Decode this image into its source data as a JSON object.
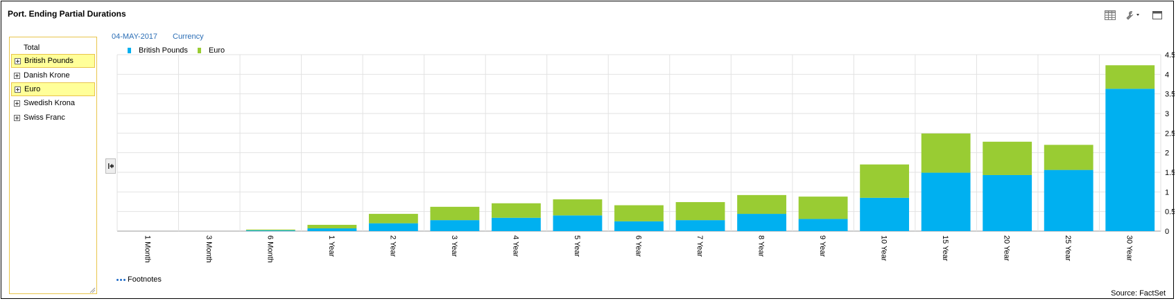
{
  "window": {
    "title": "Port. Ending Partial Durations"
  },
  "toolbar": {
    "icons": [
      "grid-icon",
      "wrench-icon",
      "chevron-down-icon",
      "maximize-icon"
    ]
  },
  "header": {
    "date": "04-MAY-2017",
    "grouping": "Currency"
  },
  "sidebar": {
    "items": [
      {
        "label": "Total",
        "expandable": false,
        "highlighted": false
      },
      {
        "label": "British Pounds",
        "expandable": true,
        "highlighted": true
      },
      {
        "label": "Danish Krone",
        "expandable": true,
        "highlighted": false
      },
      {
        "label": "Euro",
        "expandable": true,
        "highlighted": true
      },
      {
        "label": "Swedish Krona",
        "expandable": true,
        "highlighted": false
      },
      {
        "label": "Swiss Franc",
        "expandable": true,
        "highlighted": false
      }
    ]
  },
  "footer": {
    "footnotes_label": "Footnotes",
    "source": "Source: FactSet"
  },
  "chart_data": {
    "type": "bar",
    "stacked": true,
    "categories": [
      "1 Month",
      "3 Month",
      "6 Month",
      "1 Year",
      "2 Year",
      "3 Year",
      "4 Year",
      "5 Year",
      "6 Year",
      "7 Year",
      "8 Year",
      "9 Year",
      "10 Year",
      "15 Year",
      "20 Year",
      "25 Year",
      "30 Year"
    ],
    "series": [
      {
        "name": "British Pounds",
        "color": "#00b0f0",
        "values": [
          0,
          0,
          0.02,
          0.07,
          0.2,
          0.28,
          0.34,
          0.4,
          0.25,
          0.28,
          0.44,
          0.31,
          0.85,
          1.49,
          1.43,
          1.56,
          3.63
        ]
      },
      {
        "name": "Euro",
        "color": "#99cc33",
        "values": [
          0,
          0,
          0.02,
          0.09,
          0.24,
          0.34,
          0.37,
          0.41,
          0.41,
          0.46,
          0.48,
          0.57,
          0.85,
          1.0,
          0.85,
          0.64,
          0.6
        ]
      }
    ],
    "yticks": [
      "0",
      "0.5",
      "1",
      "1.5",
      "2",
      "2.5",
      "3",
      "3.5",
      "4",
      "4.5"
    ],
    "ylim": [
      0,
      4.5
    ],
    "yaxis_side": "right",
    "grid": true,
    "legend": "top-left"
  }
}
